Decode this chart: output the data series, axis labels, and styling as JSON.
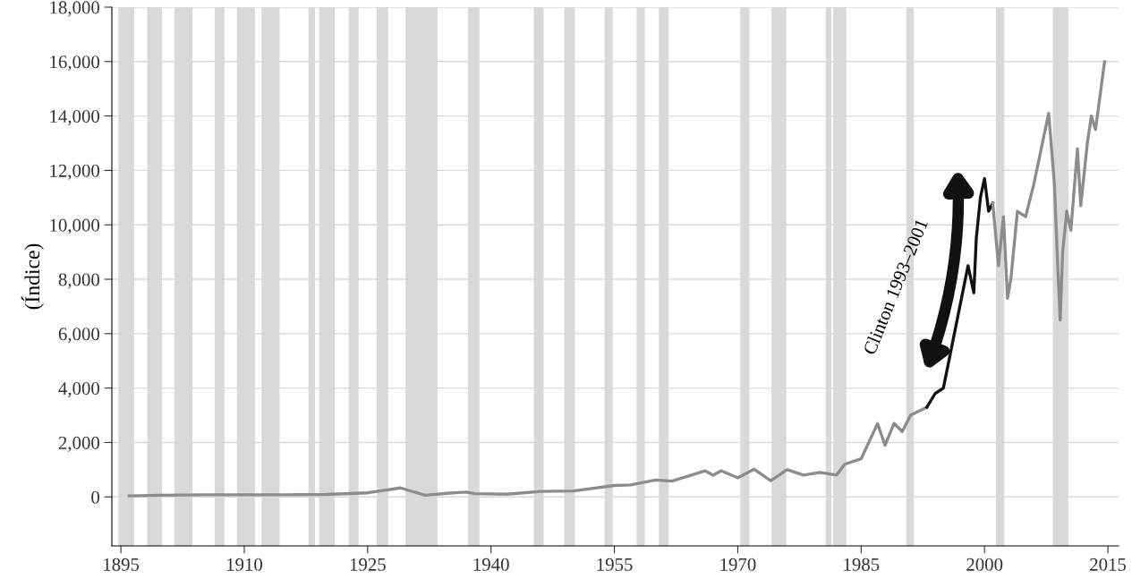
{
  "chart_data": {
    "type": "line",
    "ylabel": "(Índice)",
    "xlim": [
      1893.9,
      2016.3
    ],
    "xticks": [
      1895,
      1910,
      1925,
      1940,
      1955,
      1970,
      1985,
      2000,
      2015
    ],
    "ylim": [
      -1800,
      18000
    ],
    "yticks": [
      0,
      {
        "value": 2000,
        "label": "2,000"
      },
      {
        "value": 4000,
        "label": "4,000"
      },
      {
        "value": 6000,
        "label": "6,000"
      },
      {
        "value": 8000,
        "label": "8,000"
      },
      {
        "value": 10000,
        "label": "10,000"
      },
      {
        "value": 12000,
        "label": "12,000"
      },
      {
        "value": 14000,
        "label": "14,000"
      },
      {
        "value": 16000,
        "label": "16,000"
      },
      {
        "value": 18000,
        "label": "18,000"
      }
    ],
    "grid": "y",
    "series": [
      {
        "color": "#8c8c8c",
        "x": [
          1896,
          1900,
          1905,
          1910,
          1915,
          1920,
          1925,
          1929,
          1932,
          1935,
          1937,
          1938,
          1942,
          1946,
          1950,
          1955,
          1957,
          1960,
          1962,
          1966,
          1967,
          1968,
          1970,
          1972,
          1974,
          1976,
          1978,
          1980,
          1982,
          1983,
          1985,
          1987,
          1987.9,
          1989,
          1990,
          1991,
          1993
        ],
        "values": [
          40,
          60,
          80,
          80,
          80,
          90,
          150,
          330,
          60,
          140,
          180,
          120,
          100,
          200,
          220,
          420,
          440,
          620,
          580,
          960,
          800,
          960,
          700,
          1020,
          600,
          1000,
          800,
          900,
          800,
          1200,
          1400,
          2700,
          1900,
          2700,
          2400,
          3000,
          3300
        ]
      },
      {
        "color": "#111111",
        "x": [
          1993,
          1994,
          1995,
          1996,
          1997,
          1998,
          1998.7,
          1999,
          1999.5,
          2000,
          2000.5,
          2001
        ],
        "values": [
          3300,
          3800,
          4000,
          5500,
          7000,
          8500,
          7500,
          9500,
          11000,
          11700,
          10500,
          10800
        ]
      },
      {
        "color": "#8c8c8c",
        "x": [
          2001,
          2001.7,
          2002.3,
          2002.8,
          2003.2,
          2004,
          2005,
          2006,
          2007.8,
          2008.5,
          2008.9,
          2009.2,
          2009.5,
          2010,
          2010.5,
          2011.3,
          2011.7,
          2012.5,
          2013,
          2013.5,
          2014.6
        ],
        "values": [
          10800,
          8500,
          10300,
          7300,
          8000,
          10500,
          10300,
          11500,
          14100,
          11500,
          8500,
          6500,
          9000,
          10500,
          9800,
          12800,
          10700,
          13000,
          14000,
          13500,
          16000
        ]
      }
    ],
    "bands": [
      {
        "axis": "x",
        "from": 1894.7,
        "to": 1896.6,
        "color": "#d9d9d9"
      },
      {
        "axis": "x",
        "from": 1898.2,
        "to": 1900.0,
        "color": "#d9d9d9"
      },
      {
        "axis": "x",
        "from": 1901.5,
        "to": 1903.7,
        "color": "#d9d9d9"
      },
      {
        "axis": "x",
        "from": 1906.4,
        "to": 1907.6,
        "color": "#d9d9d9"
      },
      {
        "axis": "x",
        "from": 1909.1,
        "to": 1911.3,
        "color": "#d9d9d9"
      },
      {
        "axis": "x",
        "from": 1912.1,
        "to": 1914.3,
        "color": "#d9d9d9"
      },
      {
        "axis": "x",
        "from": 1917.8,
        "to": 1918.6,
        "color": "#d9d9d9"
      },
      {
        "axis": "x",
        "from": 1919.1,
        "to": 1921.0,
        "color": "#d9d9d9"
      },
      {
        "axis": "x",
        "from": 1922.7,
        "to": 1923.9,
        "color": "#d9d9d9"
      },
      {
        "axis": "x",
        "from": 1926.1,
        "to": 1927.5,
        "color": "#d9d9d9"
      },
      {
        "axis": "x",
        "from": 1929.6,
        "to": 1933.5,
        "color": "#d9d9d9"
      },
      {
        "axis": "x",
        "from": 1937.2,
        "to": 1938.6,
        "color": "#d9d9d9"
      },
      {
        "axis": "x",
        "from": 1945.2,
        "to": 1946.4,
        "color": "#d9d9d9"
      },
      {
        "axis": "x",
        "from": 1948.9,
        "to": 1950.2,
        "color": "#d9d9d9"
      },
      {
        "axis": "x",
        "from": 1953.8,
        "to": 1954.8,
        "color": "#d9d9d9"
      },
      {
        "axis": "x",
        "from": 1957.7,
        "to": 1958.7,
        "color": "#d9d9d9"
      },
      {
        "axis": "x",
        "from": 1960.4,
        "to": 1961.6,
        "color": "#d9d9d9"
      },
      {
        "axis": "x",
        "from": 1970.3,
        "to": 1971.4,
        "color": "#d9d9d9"
      },
      {
        "axis": "x",
        "from": 1974.1,
        "to": 1975.9,
        "color": "#d9d9d9"
      },
      {
        "axis": "x",
        "from": 1980.7,
        "to": 1981.4,
        "color": "#d9d9d9"
      },
      {
        "axis": "x",
        "from": 1981.6,
        "to": 1983.2,
        "color": "#d9d9d9"
      },
      {
        "axis": "x",
        "from": 1990.5,
        "to": 1991.4,
        "color": "#d9d9d9"
      },
      {
        "axis": "x",
        "from": 2001.4,
        "to": 2002.4,
        "color": "#d9d9d9"
      },
      {
        "axis": "x",
        "from": 2008.3,
        "to": 2010.2,
        "color": "#d9d9d9"
      }
    ],
    "annotations": [
      "Clinton 1993–2001"
    ]
  }
}
